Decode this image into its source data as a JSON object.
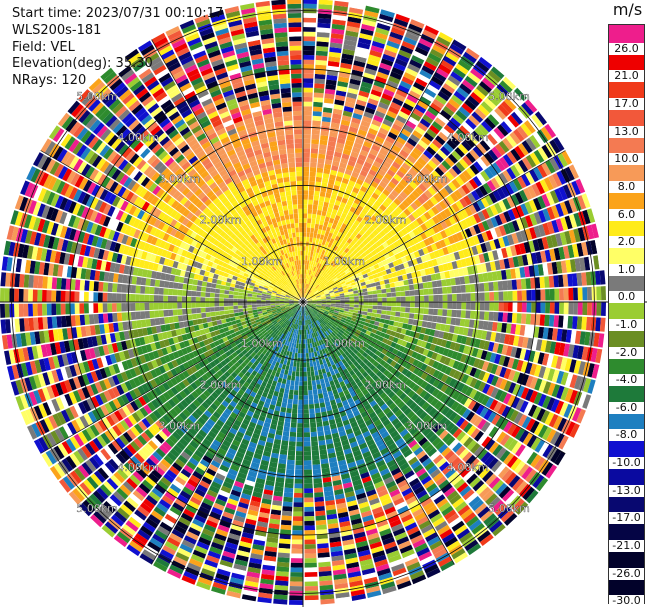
{
  "info": {
    "start_time": "Start time: 2023/07/31 00:10:17",
    "station": "WLS200s-181",
    "field": "Field: VEL",
    "elevation": "Elevation(deg): 35.30",
    "nrays": "NRays: 120"
  },
  "legend": {
    "unit": "m/s",
    "levels": [
      {
        "label": "26.0",
        "color": "#ee1e8c"
      },
      {
        "label": "21.0",
        "color": "#ee0000"
      },
      {
        "label": "17.0",
        "color": "#f03a1a"
      },
      {
        "label": "13.0",
        "color": "#f2583a"
      },
      {
        "label": "10.0",
        "color": "#f47a52"
      },
      {
        "label": "8.0",
        "color": "#f79a58"
      },
      {
        "label": "6.0",
        "color": "#fba31a"
      },
      {
        "label": "2.0",
        "color": "#ffeb1a"
      },
      {
        "label": "1.0",
        "color": "#ffff66"
      },
      {
        "label": "0.0",
        "color": "#7a7a7a"
      },
      {
        "label": "-1.0",
        "color": "#9acd32"
      },
      {
        "label": "-2.0",
        "color": "#6b8e23"
      },
      {
        "label": "-4.0",
        "color": "#2e8b2e"
      },
      {
        "label": "-6.0",
        "color": "#1e7a3a"
      },
      {
        "label": "-8.0",
        "color": "#1e7fc0"
      },
      {
        "label": "-10.0",
        "color": "#1010d0"
      },
      {
        "label": "-13.0",
        "color": "#0a0aa0"
      },
      {
        "label": "-17.0",
        "color": "#080870"
      },
      {
        "label": "-21.0",
        "color": "#050545"
      },
      {
        "label": "-26.0",
        "color": "#02022a"
      },
      {
        "label": "-30.0",
        "color": "#02022a"
      }
    ]
  },
  "chart_data": {
    "type": "heatmap",
    "projection": "polar-ppi",
    "field": "VEL",
    "elevation_deg": 35.3,
    "nrays": 120,
    "range_rings_km": [
      1,
      2,
      3,
      4,
      5
    ],
    "ring_labels": [
      "1.00km",
      "2.00km",
      "3.00km",
      "4.00km",
      "5.00km"
    ],
    "max_range_km": 5.2,
    "grid": true,
    "velocity_pattern": {
      "description_free": true,
      "north_half_dominant_ms": 6.0,
      "south_half_dominant_ms": -6.0,
      "near_zero_band_azimuth_deg": [
        90,
        270
      ],
      "noisy_beyond_km": 3.3
    }
  }
}
